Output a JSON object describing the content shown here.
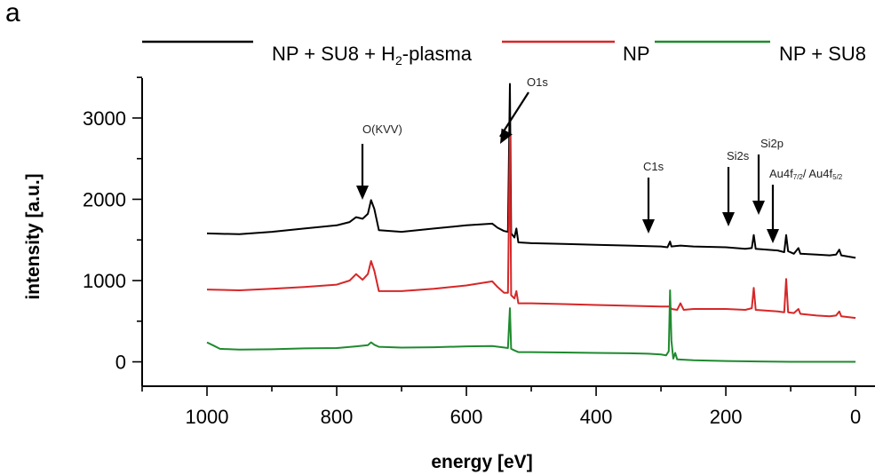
{
  "panel_label": "a",
  "chart_data": {
    "type": "line",
    "xlabel": "energy [eV]",
    "ylabel": "intensity [a.u.]",
    "xlim": [
      1100,
      -30
    ],
    "ylim": [
      -300,
      3600
    ],
    "x_reversed": true,
    "x_ticks": [
      1000,
      800,
      600,
      400,
      200,
      0
    ],
    "y_ticks": [
      0,
      1000,
      2000,
      3000
    ],
    "grid": false,
    "legend_position": "top",
    "legend": [
      {
        "label": "NP + SU8 + H2-plasma",
        "label_main": "NP + SU8 + H",
        "label_sub": "2",
        "label_tail": "-plasma",
        "color": "#000000"
      },
      {
        "label": "NP",
        "color": "#d62728"
      },
      {
        "label": "NP + SU8",
        "color": "#1f8a2f"
      }
    ],
    "series": [
      {
        "name": "NP + SU8 + H2-plasma",
        "color": "#000000",
        "points": [
          [
            1000,
            1580
          ],
          [
            950,
            1570
          ],
          [
            900,
            1600
          ],
          [
            850,
            1640
          ],
          [
            800,
            1680
          ],
          [
            780,
            1720
          ],
          [
            770,
            1780
          ],
          [
            760,
            1760
          ],
          [
            752,
            1820
          ],
          [
            747,
            1990
          ],
          [
            742,
            1880
          ],
          [
            735,
            1620
          ],
          [
            700,
            1600
          ],
          [
            650,
            1640
          ],
          [
            600,
            1680
          ],
          [
            560,
            1700
          ],
          [
            552,
            1650
          ],
          [
            542,
            1610
          ],
          [
            536,
            1600
          ],
          [
            533,
            3420
          ],
          [
            531,
            1580
          ],
          [
            526,
            1530
          ],
          [
            523,
            1640
          ],
          [
            520,
            1470
          ],
          [
            500,
            1460
          ],
          [
            450,
            1450
          ],
          [
            400,
            1440
          ],
          [
            350,
            1430
          ],
          [
            300,
            1420
          ],
          [
            290,
            1410
          ],
          [
            286,
            1480
          ],
          [
            284,
            1420
          ],
          [
            270,
            1430
          ],
          [
            250,
            1420
          ],
          [
            200,
            1410
          ],
          [
            170,
            1390
          ],
          [
            160,
            1400
          ],
          [
            157,
            1560
          ],
          [
            154,
            1390
          ],
          [
            120,
            1370
          ],
          [
            110,
            1350
          ],
          [
            107,
            1560
          ],
          [
            104,
            1360
          ],
          [
            95,
            1330
          ],
          [
            88,
            1400
          ],
          [
            85,
            1330
          ],
          [
            60,
            1320
          ],
          [
            40,
            1310
          ],
          [
            30,
            1320
          ],
          [
            25,
            1380
          ],
          [
            22,
            1310
          ],
          [
            0,
            1280
          ]
        ]
      },
      {
        "name": "NP",
        "color": "#d62728",
        "points": [
          [
            1000,
            890
          ],
          [
            950,
            880
          ],
          [
            900,
            900
          ],
          [
            850,
            920
          ],
          [
            800,
            950
          ],
          [
            780,
            1000
          ],
          [
            770,
            1080
          ],
          [
            760,
            1010
          ],
          [
            752,
            1080
          ],
          [
            747,
            1240
          ],
          [
            742,
            1120
          ],
          [
            735,
            870
          ],
          [
            700,
            870
          ],
          [
            650,
            900
          ],
          [
            600,
            940
          ],
          [
            560,
            990
          ],
          [
            552,
            920
          ],
          [
            542,
            850
          ],
          [
            536,
            850
          ],
          [
            533,
            2780
          ],
          [
            531,
            820
          ],
          [
            526,
            780
          ],
          [
            523,
            870
          ],
          [
            520,
            720
          ],
          [
            500,
            720
          ],
          [
            450,
            710
          ],
          [
            400,
            700
          ],
          [
            350,
            690
          ],
          [
            300,
            680
          ],
          [
            290,
            680
          ],
          [
            286,
            680
          ],
          [
            284,
            650
          ],
          [
            275,
            640
          ],
          [
            270,
            720
          ],
          [
            265,
            640
          ],
          [
            250,
            650
          ],
          [
            200,
            650
          ],
          [
            170,
            640
          ],
          [
            160,
            660
          ],
          [
            157,
            910
          ],
          [
            154,
            640
          ],
          [
            120,
            620
          ],
          [
            110,
            610
          ],
          [
            107,
            1020
          ],
          [
            104,
            610
          ],
          [
            95,
            600
          ],
          [
            88,
            650
          ],
          [
            85,
            590
          ],
          [
            60,
            570
          ],
          [
            40,
            560
          ],
          [
            30,
            570
          ],
          [
            25,
            620
          ],
          [
            22,
            560
          ],
          [
            0,
            540
          ]
        ]
      },
      {
        "name": "NP + SU8",
        "color": "#1f8a2f",
        "points": [
          [
            1000,
            240
          ],
          [
            990,
            200
          ],
          [
            980,
            160
          ],
          [
            950,
            150
          ],
          [
            900,
            155
          ],
          [
            850,
            165
          ],
          [
            800,
            170
          ],
          [
            770,
            190
          ],
          [
            752,
            205
          ],
          [
            747,
            240
          ],
          [
            742,
            210
          ],
          [
            735,
            185
          ],
          [
            700,
            175
          ],
          [
            650,
            180
          ],
          [
            600,
            190
          ],
          [
            560,
            195
          ],
          [
            545,
            180
          ],
          [
            536,
            170
          ],
          [
            533,
            660
          ],
          [
            531,
            160
          ],
          [
            526,
            140
          ],
          [
            520,
            120
          ],
          [
            500,
            120
          ],
          [
            450,
            115
          ],
          [
            400,
            110
          ],
          [
            350,
            105
          ],
          [
            320,
            100
          ],
          [
            300,
            90
          ],
          [
            292,
            80
          ],
          [
            288,
            130
          ],
          [
            286,
            880
          ],
          [
            284,
            260
          ],
          [
            281,
            40
          ],
          [
            278,
            110
          ],
          [
            275,
            30
          ],
          [
            250,
            20
          ],
          [
            200,
            10
          ],
          [
            150,
            5
          ],
          [
            100,
            0
          ],
          [
            50,
            0
          ],
          [
            0,
            0
          ]
        ]
      }
    ],
    "annotations": [
      {
        "text": "O(KVV)",
        "x": 747
      },
      {
        "text": "O1s",
        "x": 533
      },
      {
        "text": "C1s",
        "x": 285
      },
      {
        "text": "Si2s",
        "x": 157
      },
      {
        "text": "Si2p",
        "x": 107
      },
      {
        "text": "Au4f7/2 / Au4f5/2",
        "x": 87,
        "parts": [
          "Au4f",
          "7/2",
          "/ Au4f",
          "5/2"
        ]
      }
    ]
  }
}
